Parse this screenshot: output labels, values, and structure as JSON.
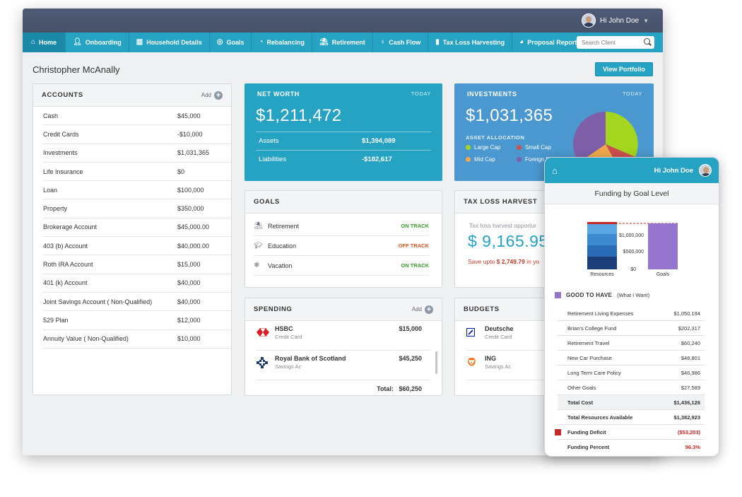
{
  "user": {
    "greeting": "Hi John Doe"
  },
  "nav": {
    "items": [
      {
        "label": "Home",
        "icon": "home-icon"
      },
      {
        "label": "Onboarding",
        "icon": "person-icon"
      },
      {
        "label": "Household Details",
        "icon": "building-icon"
      },
      {
        "label": "Goals",
        "icon": "target-icon"
      },
      {
        "label": "Rebalancing",
        "icon": "rebalance-icon"
      },
      {
        "label": "Retirement",
        "icon": "beach-icon"
      },
      {
        "label": "Cash Flow",
        "icon": "money-bag-icon"
      },
      {
        "label": "Tax Loss Harvesting",
        "icon": "bar-chart-icon"
      },
      {
        "label": "Proposal Report",
        "icon": "pie-icon"
      }
    ],
    "search_placeholder": "Search Client"
  },
  "client": {
    "name": "Christopher McAnally",
    "view_portfolio": "View Portfolio"
  },
  "accounts": {
    "title": "ACCOUNTS",
    "add": "Add",
    "rows": [
      {
        "label": "Cash",
        "value": "$45,000"
      },
      {
        "label": "Credit Cards",
        "value": "-$10,000"
      },
      {
        "label": "Investments",
        "value": "$1,031,365"
      },
      {
        "label": "Life Insurance",
        "value": "$0"
      },
      {
        "label": "Loan",
        "value": "$100,000"
      },
      {
        "label": "Property",
        "value": "$350,000"
      },
      {
        "label": "Brokerage Account",
        "value": "$45,000.00"
      },
      {
        "label": "403 (b) Account",
        "value": "$40,000.00"
      },
      {
        "label": "Roth IRA Account",
        "value": "$15,000"
      },
      {
        "label": "401 (k) Account",
        "value": "$40,000"
      },
      {
        "label": "Joint Savings Account ( Non-Qualified)",
        "value": "$40,000"
      },
      {
        "label": "529 Plan",
        "value": "$12,000"
      },
      {
        "label": "Annuity Value ( Non-Qualified)",
        "value": "$10,000"
      }
    ]
  },
  "net_worth": {
    "title": "NET WORTH",
    "today": "TODAY",
    "amount": "$1,211,472",
    "assets_label": "Assets",
    "assets_value": "$1,394,089",
    "liabilities_label": "Liabilities",
    "liabilities_value": "-$182,617"
  },
  "investments": {
    "title": "INVESTMENTS",
    "today": "TODAY",
    "amount": "$1,031,365",
    "allocation_title": "ASSET ALLOCATION",
    "legend": [
      {
        "label": "Large Cap",
        "color": "#a4d61f"
      },
      {
        "label": "Small Cap",
        "color": "#cd4f4f"
      },
      {
        "label": "Mid Cap",
        "color": "#f0a84a"
      },
      {
        "label": "Foreign Dev",
        "color": "#7f5fa8"
      }
    ]
  },
  "goals": {
    "title": "GOALS",
    "rows": [
      {
        "label": "Retirement",
        "status": "ON TRACK",
        "status_color": "#3a9a2a",
        "icon": "beach-icon"
      },
      {
        "label": "Education",
        "status": "OFF TRACK",
        "status_color": "#e0531f",
        "icon": "graduation-cap-icon"
      },
      {
        "label": "Vacation",
        "status": "ON TRACK",
        "status_color": "#3a9a2a",
        "icon": "snowflake-icon"
      }
    ]
  },
  "tax_loss": {
    "title": "TAX LOSS HARVEST",
    "subtitle": "Tax loss harvest opportur",
    "amount": "$ 9,165.95",
    "note_prefix": "Save upto",
    "note_amount": "$ 2,749.79",
    "note_suffix": "in yo"
  },
  "spending": {
    "title": "SPENDING",
    "add": "Add",
    "rows": [
      {
        "name": "HSBC",
        "sub": "Credit Card",
        "value": "$15,000"
      },
      {
        "name": "Royal Bank of Scotland",
        "sub": "Savings Ac",
        "value": "$45,250"
      }
    ],
    "total_label": "Total:",
    "total_value": "$60,250"
  },
  "budgets": {
    "title": "BUDGETS",
    "rows": [
      {
        "name": "Deutsche",
        "sub": "Credit Card"
      },
      {
        "name": "ING",
        "sub": "Savings Ac"
      }
    ]
  },
  "mobile": {
    "greeting": "Hi John Doe",
    "title": "Funding by Goal Level",
    "chart": {
      "y_labels": [
        "$1,000,000",
        "$500,000",
        "$0"
      ],
      "categories": [
        "Resources",
        "Goals"
      ]
    },
    "good_to_have": "GOOD TO HAVE",
    "good_to_have_sub": "(What I Want)",
    "rows": [
      {
        "label": "Retirement Living Expenses",
        "value": "$1,050,194"
      },
      {
        "label": "Brian's College Fund",
        "value": "$202,317"
      },
      {
        "label": "Retirement Travel",
        "value": "$60,240"
      },
      {
        "label": "New Car Purchase",
        "value": "$48,801"
      },
      {
        "label": "Long Term Care Policy",
        "value": "$46,986"
      },
      {
        "label": "Other Goals",
        "value": "$27,589"
      }
    ],
    "total_cost_label": "Total Cost",
    "total_cost_value": "$1,436,126",
    "total_resources_label": "Total Resources Available",
    "total_resources_value": "$1,382,923",
    "deficit_label": "Funding Deficit",
    "deficit_value": "($53,203)",
    "percent_label": "Funding Percent",
    "percent_value": "96.3%"
  }
}
